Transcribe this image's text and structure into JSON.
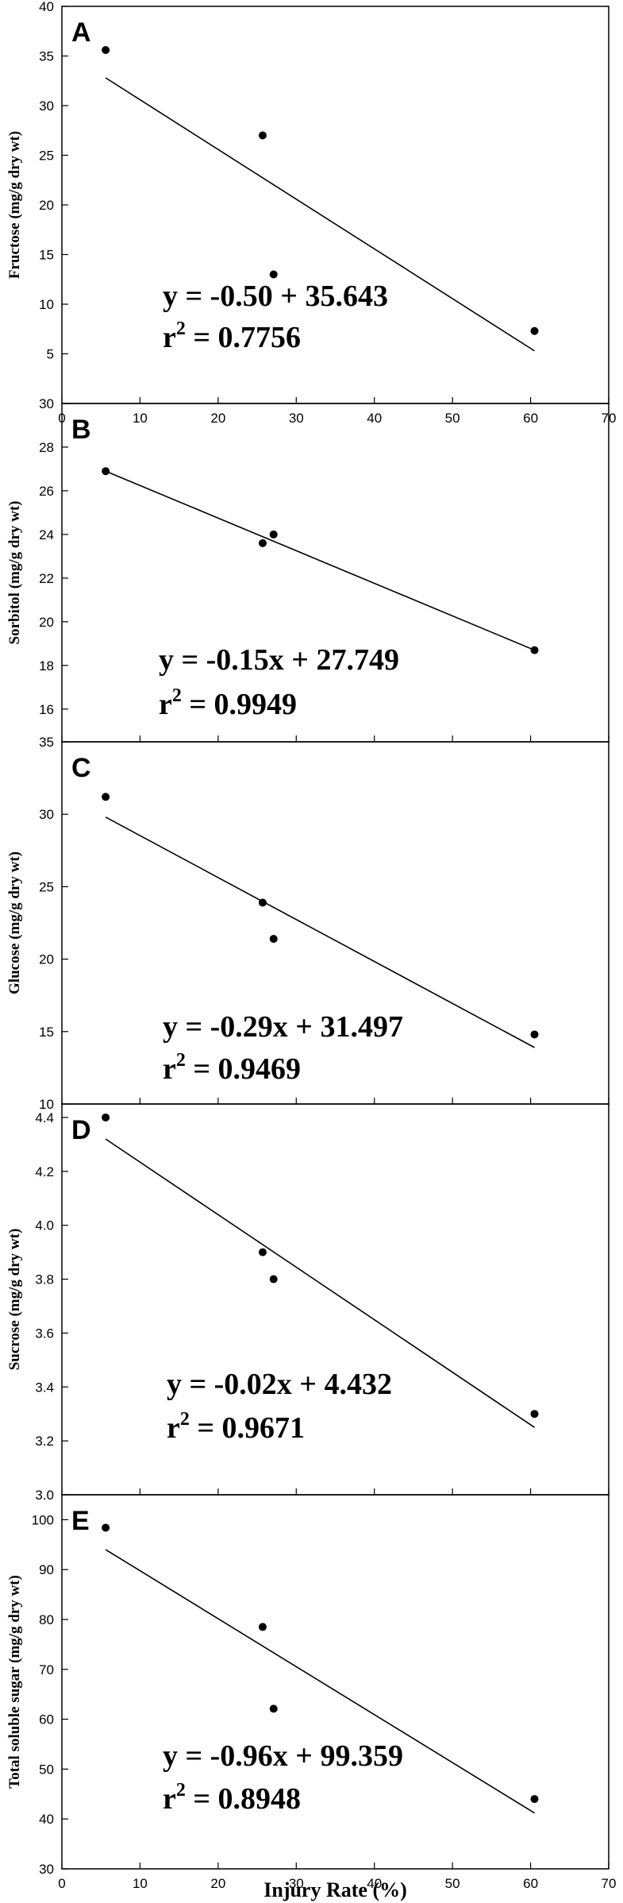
{
  "figure": {
    "xlabel": "Injury Rate (%)"
  },
  "chart_data": [
    {
      "type": "scatter",
      "panel_label": "A",
      "ylabel": "Fructose (mg/g dry wt)",
      "xlim": [
        0,
        70
      ],
      "ylim": [
        0,
        40
      ],
      "x_ticks": [
        0,
        10,
        20,
        30,
        40,
        50,
        60,
        70
      ],
      "y_ticks": [
        5,
        10,
        15,
        20,
        25,
        30,
        35,
        40
      ],
      "points": [
        {
          "x": 5.6,
          "y": 35.6
        },
        {
          "x": 25.7,
          "y": 27.0
        },
        {
          "x": 27.1,
          "y": 13.0
        },
        {
          "x": 60.5,
          "y": 7.3
        }
      ],
      "trendline": {
        "x": [
          5.6,
          60.5
        ],
        "y": [
          32.8,
          5.3
        ]
      },
      "equation": "y = -0.50 + 35.643",
      "r2_prefix": "r",
      "r2_exp": "2",
      "r2_value": " = 0.7756"
    },
    {
      "type": "scatter",
      "panel_label": "B",
      "ylabel": "Sorbitol (mg/g dry wt)",
      "xlim": [
        0,
        70
      ],
      "ylim": [
        14.5,
        30
      ],
      "x_ticks": [],
      "y_ticks": [
        16,
        18,
        20,
        22,
        24,
        26,
        28,
        30
      ],
      "points": [
        {
          "x": 5.6,
          "y": 26.9
        },
        {
          "x": 25.7,
          "y": 23.6
        },
        {
          "x": 27.1,
          "y": 24.0
        },
        {
          "x": 60.5,
          "y": 18.7
        }
      ],
      "trendline": {
        "x": [
          5.6,
          60.5
        ],
        "y": [
          26.9,
          18.7
        ]
      },
      "equation": "y = -0.15x + 27.749",
      "r2_prefix": "r",
      "r2_exp": "2",
      "r2_value": " = 0.9949"
    },
    {
      "type": "scatter",
      "panel_label": "C",
      "ylabel": "Glucose (mg/g dry wt)",
      "xlim": [
        0,
        70
      ],
      "ylim": [
        10,
        35
      ],
      "x_ticks": [],
      "y_ticks": [
        10,
        15,
        20,
        25,
        30,
        35
      ],
      "points": [
        {
          "x": 5.6,
          "y": 31.2
        },
        {
          "x": 25.7,
          "y": 23.9
        },
        {
          "x": 27.1,
          "y": 21.4
        },
        {
          "x": 60.5,
          "y": 14.8
        }
      ],
      "trendline": {
        "x": [
          5.6,
          60.5
        ],
        "y": [
          29.8,
          13.9
        ]
      },
      "equation": "y = -0.29x + 31.497",
      "r2_prefix": "r",
      "r2_exp": "2",
      "r2_value": " = 0.9469"
    },
    {
      "type": "scatter",
      "panel_label": "D",
      "ylabel": "Sucrose (mg/g dry wt)",
      "xlim": [
        0,
        70
      ],
      "ylim": [
        3.0,
        4.45
      ],
      "x_ticks": [],
      "y_ticks": [
        "3.0",
        "3.2",
        "3.4",
        "3.6",
        "3.8",
        "4.0",
        "4.2",
        "4.4"
      ],
      "points": [
        {
          "x": 5.6,
          "y": 4.4
        },
        {
          "x": 25.7,
          "y": 3.9
        },
        {
          "x": 27.1,
          "y": 3.8
        },
        {
          "x": 60.5,
          "y": 3.3
        }
      ],
      "trendline": {
        "x": [
          5.6,
          60.5
        ],
        "y": [
          4.32,
          3.25
        ]
      },
      "equation": "y = -0.02x + 4.432",
      "r2_prefix": "r",
      "r2_exp": "2",
      "r2_value": " = 0.9671"
    },
    {
      "type": "scatter",
      "panel_label": "E",
      "ylabel": "Total soluble sugar (mg/g dry wt)",
      "xlim": [
        0,
        70
      ],
      "ylim": [
        30,
        105
      ],
      "x_ticks": [
        0,
        10,
        20,
        30,
        40,
        50,
        60,
        70
      ],
      "y_ticks": [
        30,
        40,
        50,
        60,
        70,
        80,
        90,
        100
      ],
      "points": [
        {
          "x": 5.6,
          "y": 98.4
        },
        {
          "x": 25.7,
          "y": 78.5
        },
        {
          "x": 27.1,
          "y": 62.1
        },
        {
          "x": 60.5,
          "y": 44.0
        }
      ],
      "trendline": {
        "x": [
          5.6,
          60.5
        ],
        "y": [
          94.0,
          41.2
        ]
      },
      "equation": "y = -0.96x + 99.359",
      "r2_prefix": "r",
      "r2_exp": "2",
      "r2_value": " = 0.8948"
    }
  ]
}
